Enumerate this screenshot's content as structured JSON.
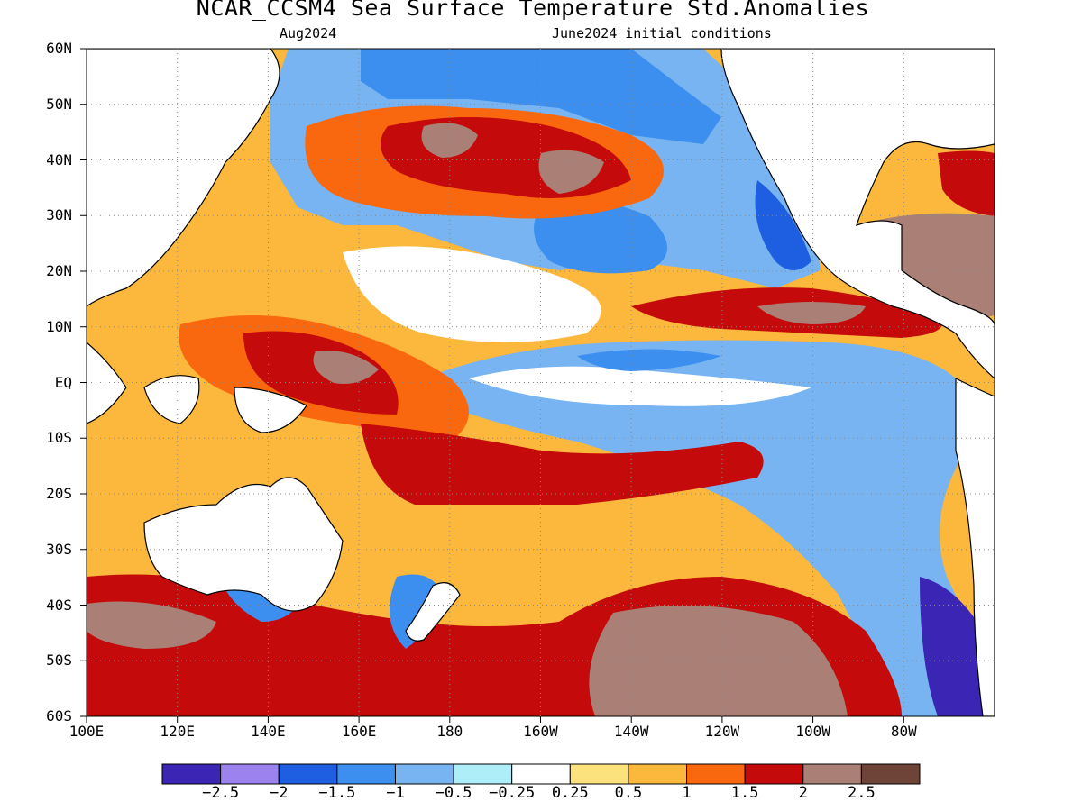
{
  "title": "NCAR_CCSM4 Sea Surface Temperature Std.Anomalies",
  "subtitle_left": "Aug2024",
  "subtitle_right": "June2024 initial conditions",
  "lat_labels": [
    "60N",
    "50N",
    "40N",
    "30N",
    "20N",
    "10N",
    "EQ",
    "10S",
    "20S",
    "30S",
    "40S",
    "50S",
    "60S"
  ],
  "lon_labels": [
    "100E",
    "120E",
    "140E",
    "160E",
    "180",
    "160W",
    "140W",
    "120W",
    "100W",
    "80W"
  ],
  "colorbar": {
    "colors": [
      "#3a25b5",
      "#9b82ef",
      "#1e5ee0",
      "#3c8fee",
      "#78b4f2",
      "#aeeef8",
      "#ffffff",
      "#fbe27c",
      "#fbb83c",
      "#f9680f",
      "#c40a0a",
      "#aa7f75",
      "#6e4338"
    ],
    "labels": [
      "-2.5",
      "-2",
      "-1.5",
      "-1",
      "-0.5",
      "-0.25",
      "0.25",
      "0.5",
      "1",
      "1.5",
      "2",
      "2.5"
    ]
  },
  "colors": {
    "cold_strong": "#3a25b5",
    "cold": "#3c8fee",
    "neutral": "#ffffff",
    "warm": "#fbb83c",
    "warm_strong": "#c40a0a",
    "extreme_warm": "#aa7f75"
  }
}
